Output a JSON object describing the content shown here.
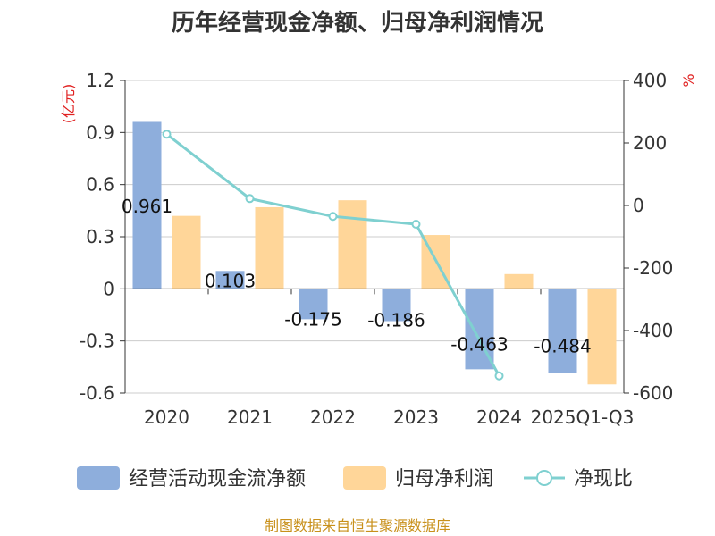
{
  "chart_data": {
    "type": "bar",
    "title": "历年经营现金净额、归母净利润情况",
    "categories": [
      "2020",
      "2021",
      "2022",
      "2023",
      "2024",
      "2025Q1-Q3"
    ],
    "left_axis": {
      "unit": "(亿元)",
      "ylim": [
        -0.6,
        1.2
      ],
      "ticks": [
        "1.2",
        "0.9",
        "0.6",
        "0.3",
        "0",
        "-0.3",
        "-0.6"
      ]
    },
    "right_axis": {
      "unit": "%",
      "ylim": [
        -600,
        400
      ],
      "ticks": [
        "400",
        "200",
        "0",
        "-200",
        "-400",
        "-600"
      ]
    },
    "series": [
      {
        "name": "经营活动现金流净额",
        "type": "bar",
        "axis": "left",
        "color": "#8eaedc",
        "values": [
          0.961,
          0.103,
          -0.175,
          -0.186,
          -0.463,
          -0.484
        ],
        "labels": [
          "0.961",
          "0.103",
          "-0.175",
          "-0.186",
          "-0.463",
          "-0.484"
        ]
      },
      {
        "name": "归母净利润",
        "type": "bar",
        "axis": "left",
        "color": "#ffd699",
        "values": [
          0.42,
          0.47,
          0.51,
          0.31,
          0.085,
          -0.55
        ]
      },
      {
        "name": "净现比",
        "type": "line",
        "axis": "right",
        "color": "#7fd0d0",
        "values": [
          228,
          22,
          -35,
          -60,
          -545,
          null
        ]
      }
    ],
    "grid": true,
    "legend": "bottom"
  },
  "source": "制图数据来自恒生聚源数据库"
}
